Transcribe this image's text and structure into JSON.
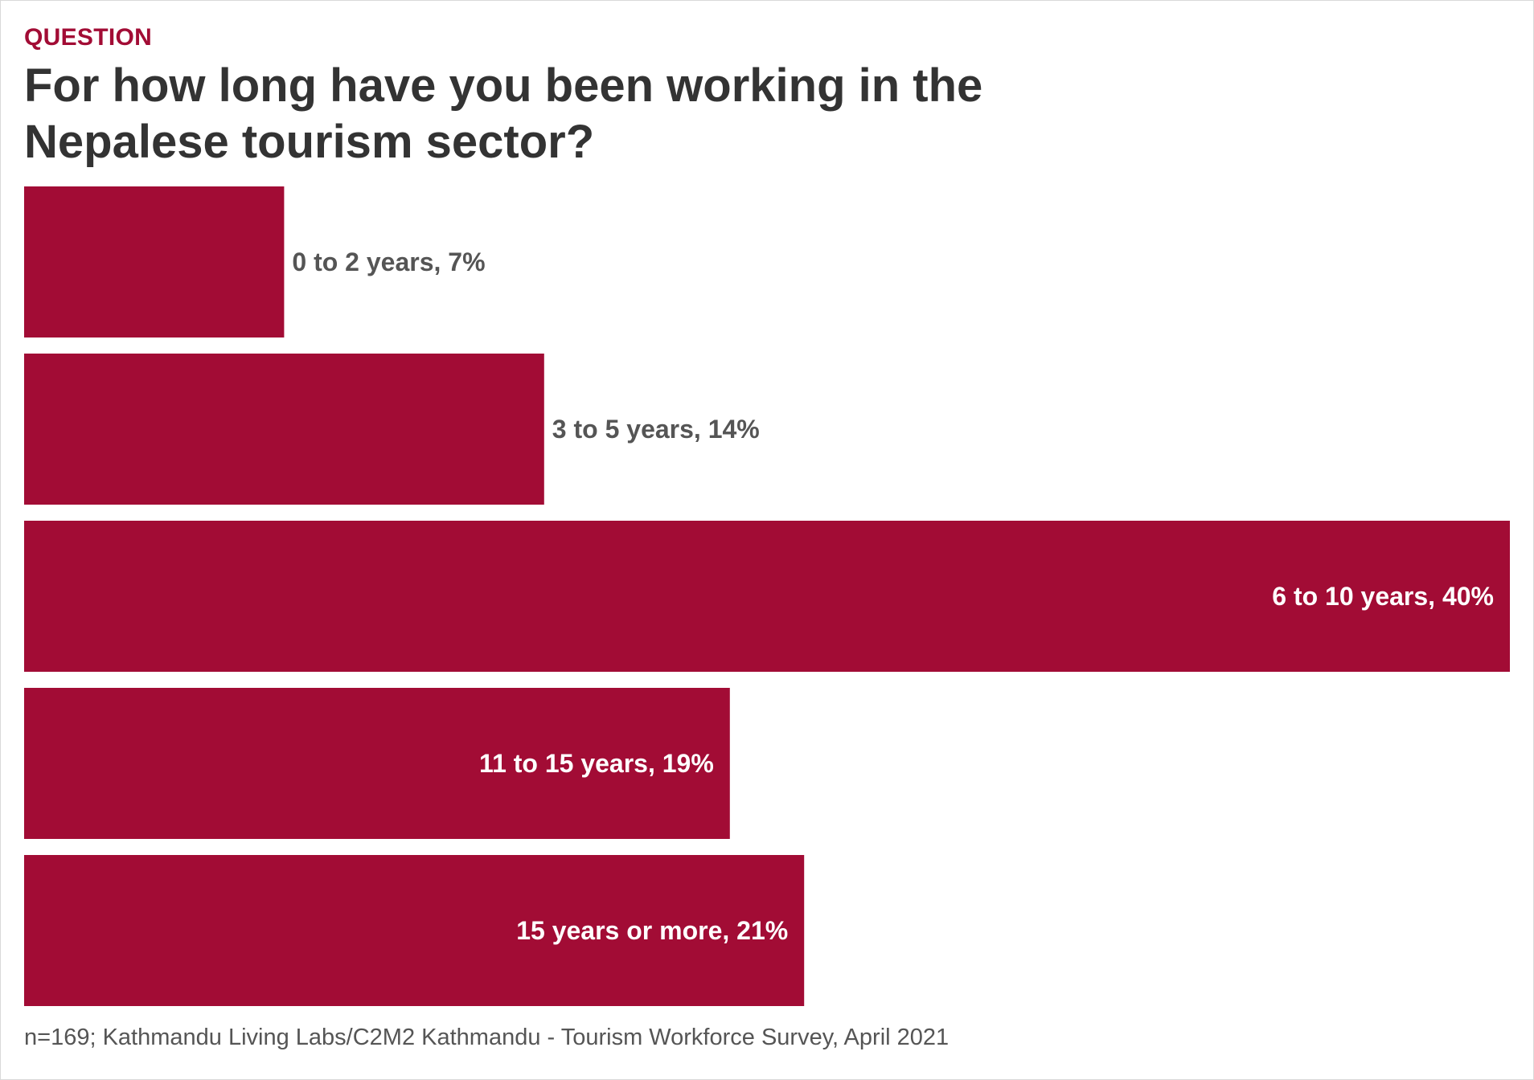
{
  "header": {
    "kicker": "QUESTION",
    "title": "For how long have you been working in the Nepalese tourism sector?"
  },
  "colors": {
    "bar": "#a20c35",
    "label_outside": "#555555",
    "label_inside": "#ffffff"
  },
  "chart_data": {
    "type": "bar",
    "orientation": "horizontal",
    "categories": [
      "0 to 2 years",
      "3 to 5 years",
      "6 to 10 years",
      "11 to 15 years",
      "15 years or more"
    ],
    "values": [
      7,
      14,
      40,
      19,
      21
    ],
    "unit": "%",
    "data_labels": [
      "0 to 2 years, 7%",
      "3 to 5 years, 14%",
      "6 to 10 years, 40%",
      "11 to 15 years, 19%",
      "15 years or more, 21%"
    ],
    "xlim": [
      0,
      40
    ],
    "grid": false,
    "legend": "none"
  },
  "footer": {
    "source": "n=169; Kathmandu Living Labs/C2M2 Kathmandu - Tourism Workforce Survey, April 2021"
  }
}
